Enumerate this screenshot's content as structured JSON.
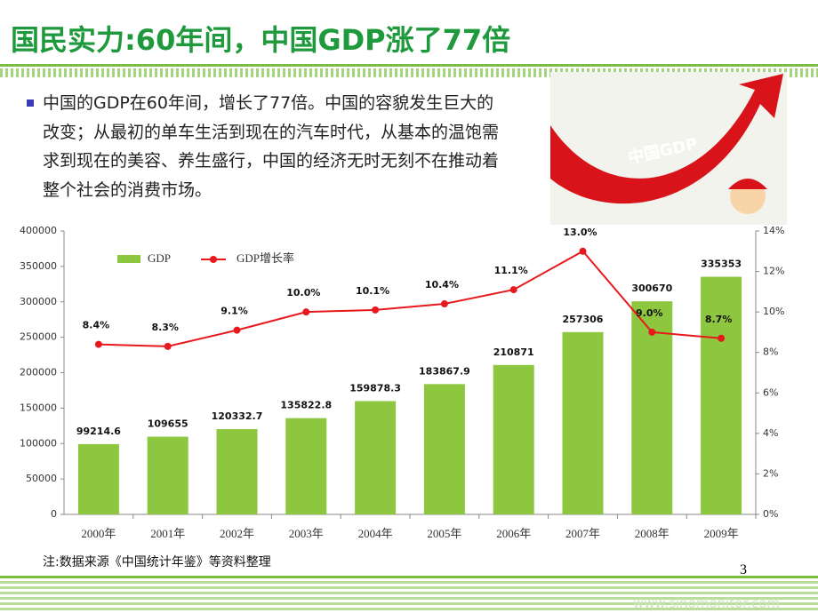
{
  "title": "国民实力:60年间，中国GDP涨了77倍",
  "bullet_lines": [
    "中国的GDP在60年间，增长了77倍。中国的容貌发生巨大的",
    "改变；从最初的单车生活到现在的汽车时代，从基本的温饱需",
    "求到现在的美容、养生盛行，中国的经济无时无刻不在推动着",
    "整个社会的消费市场。"
  ],
  "image_text": "中国GDP",
  "note": "注:数据来源《中国统计年鉴》等资料整理",
  "page_number": "3",
  "footer_url": "www.sinomonitor.com",
  "chart_data": {
    "type": "bar-line",
    "categories": [
      "2000年",
      "2001年",
      "2002年",
      "2003年",
      "2004年",
      "2005年",
      "2006年",
      "2007年",
      "2008年",
      "2009年"
    ],
    "series": [
      {
        "name": "GDP",
        "type": "bar",
        "color": "#8dc63f",
        "values": [
          99214.6,
          109655,
          120332.7,
          135822.8,
          159878.3,
          183867.9,
          210871,
          257306,
          300670,
          335353
        ]
      },
      {
        "name": "GDP增长率",
        "type": "line",
        "axis": "y2",
        "color": "#e8191c",
        "values": [
          8.4,
          8.3,
          9.1,
          10.0,
          10.1,
          10.4,
          11.1,
          13.0,
          9.0,
          8.7
        ],
        "value_labels": [
          "8.4%",
          "8.3%",
          "9.1%",
          "10.0%",
          "10.1%",
          "10.4%",
          "11.1%",
          "13.0%",
          "9.0%",
          "8.7%"
        ]
      }
    ],
    "ylim": [
      0,
      400000
    ],
    "yticks": [
      0,
      50000,
      100000,
      150000,
      200000,
      250000,
      300000,
      350000,
      400000
    ],
    "y2lim": [
      0,
      14
    ],
    "y2ticks": [
      {
        "value": 0,
        "label": "0%"
      },
      {
        "value": 2,
        "label": "2%"
      },
      {
        "value": 4,
        "label": "4%"
      },
      {
        "value": 6,
        "label": "6%"
      },
      {
        "value": 8,
        "label": "8%"
      },
      {
        "value": 10,
        "label": "10%"
      },
      {
        "value": 12,
        "label": "12%"
      },
      {
        "value": 14,
        "label": "14%"
      }
    ],
    "legend": "top-left",
    "grid": false
  }
}
